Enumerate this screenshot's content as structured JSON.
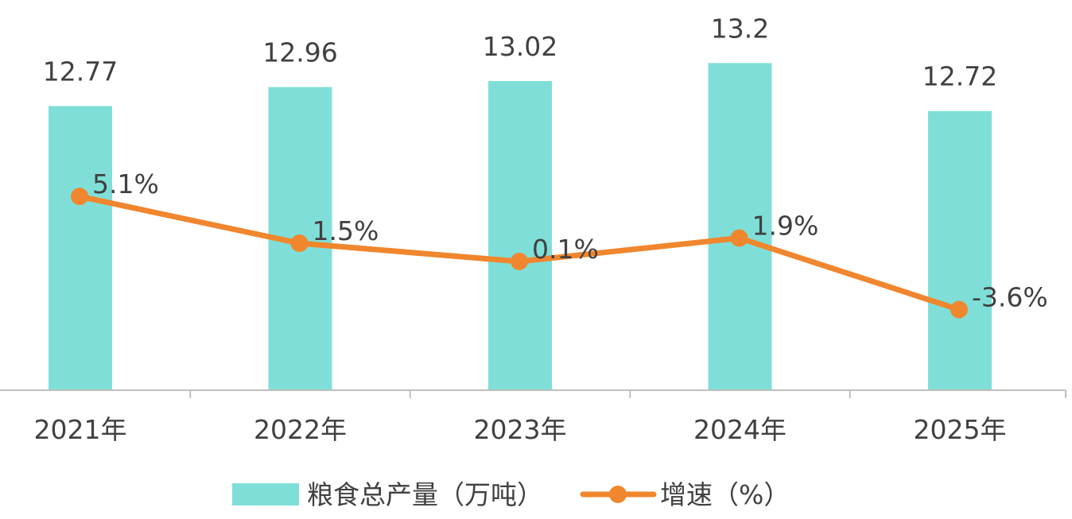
{
  "chart_data": {
    "type": "bar",
    "title": "",
    "xlabel": "",
    "ylabel": "",
    "categories": [
      "2021年",
      "2022年",
      "2023年",
      "2024年",
      "2025年"
    ],
    "series": [
      {
        "name": "粮食总产量（万吨）",
        "type": "bar",
        "axis": "left",
        "values": [
          12.77,
          12.96,
          13.02,
          13.2,
          12.72
        ],
        "labels": [
          "12.77",
          "12.96",
          "13.02",
          "13.2",
          "12.72"
        ],
        "color": "#7FDFD8"
      },
      {
        "name": "增速（%）",
        "type": "line",
        "axis": "right",
        "values": [
          5.1,
          1.5,
          0.1,
          1.9,
          -3.6
        ],
        "labels": [
          "5.1%",
          "1.5%",
          "0.1%",
          "1.9%",
          "-3.6%"
        ],
        "color": "#F0862E"
      }
    ],
    "ylim": [
      9.93,
      13.83
    ],
    "y2lim": [
      -9.8,
      20.2
    ],
    "grid": false,
    "legend_position": "bottom"
  }
}
